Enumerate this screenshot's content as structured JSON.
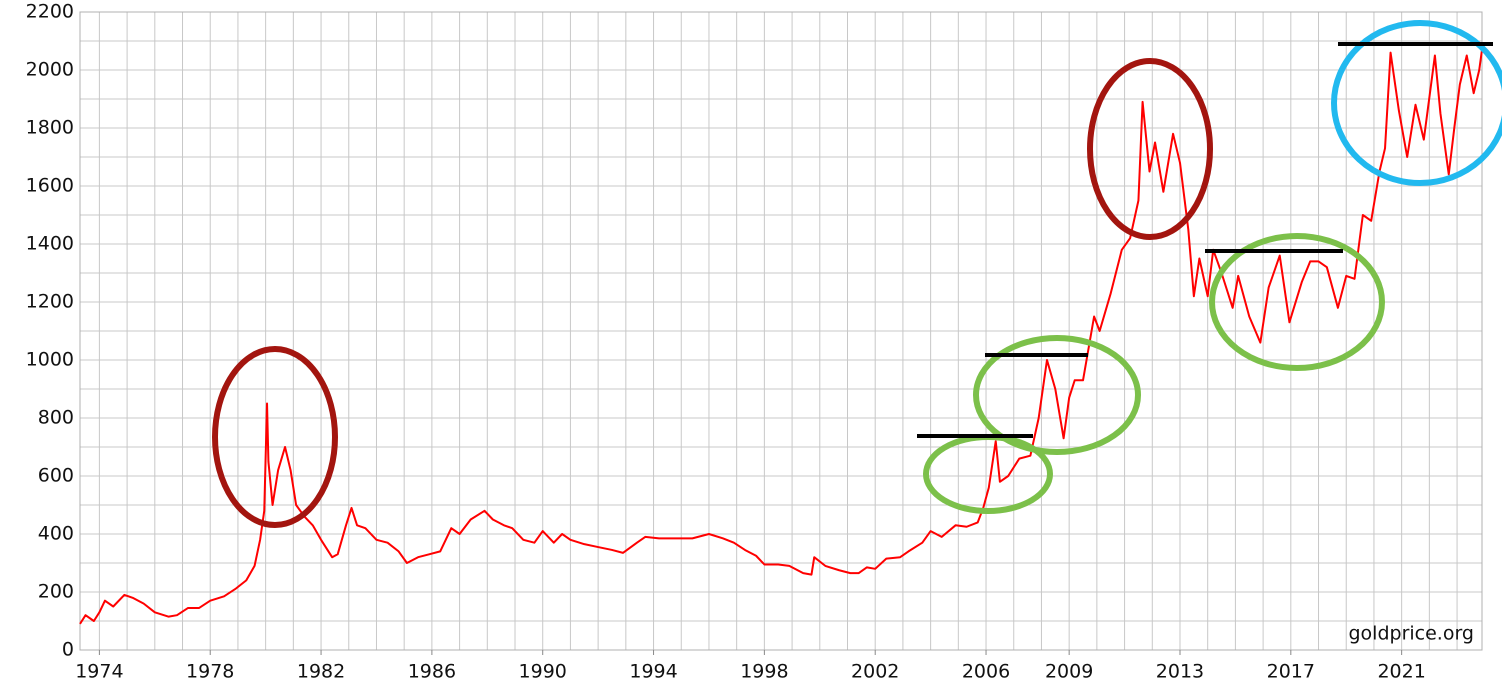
{
  "chart_data": {
    "type": "line",
    "annotation": "goldprice.org",
    "color": "#ff0000",
    "grid": true,
    "xlim": [
      1973.3,
      2023.9
    ],
    "xticks": [
      1974,
      1978,
      1982,
      1986,
      1990,
      1994,
      1998,
      2002,
      2006,
      2009,
      2013,
      2017,
      2021
    ],
    "xminor": [
      1974,
      1975,
      1976,
      1977,
      1978,
      1979,
      1980,
      1981,
      1982,
      1983,
      1984,
      1985,
      1986,
      1987,
      1988,
      1989,
      1990,
      1991,
      1992,
      1993,
      1994,
      1995,
      1996,
      1997,
      1998,
      1999,
      2000,
      2001,
      2002,
      2003,
      2004,
      2005,
      2006,
      2007,
      2008,
      2009,
      2010,
      2011,
      2012,
      2013,
      2014,
      2015,
      2016,
      2017,
      2018,
      2019,
      2020,
      2021,
      2022,
      2023
    ],
    "ylim": [
      0,
      2200
    ],
    "yticks": [
      0,
      200,
      400,
      600,
      800,
      1000,
      1200,
      1400,
      1600,
      1800,
      2000,
      2200
    ],
    "yminor": [
      100,
      300,
      500,
      700,
      900,
      1100,
      1300,
      1500,
      1700,
      1900,
      2100
    ],
    "x": [
      1973.3,
      1973.5,
      1973.8,
      1974.0,
      1974.2,
      1974.5,
      1974.9,
      1975.2,
      1975.6,
      1976.0,
      1976.5,
      1976.8,
      1977.2,
      1977.6,
      1978.0,
      1978.5,
      1978.9,
      1979.3,
      1979.6,
      1979.8,
      1979.95,
      1980.05,
      1980.1,
      1980.25,
      1980.45,
      1980.7,
      1980.9,
      1981.1,
      1981.4,
      1981.7,
      1982.0,
      1982.4,
      1982.6,
      1982.9,
      1983.1,
      1983.3,
      1983.6,
      1984.0,
      1984.4,
      1984.8,
      1985.1,
      1985.5,
      1985.9,
      1986.3,
      1986.7,
      1987.0,
      1987.4,
      1987.9,
      1988.2,
      1988.6,
      1988.9,
      1989.3,
      1989.7,
      1990.0,
      1990.4,
      1990.7,
      1991.0,
      1991.5,
      1992.0,
      1992.5,
      1992.9,
      1993.4,
      1993.7,
      1994.2,
      1994.8,
      1995.4,
      1996.0,
      1996.5,
      1996.9,
      1997.3,
      1997.7,
      1998.0,
      1998.5,
      1998.9,
      1999.4,
      1999.7,
      1999.8,
      2000.2,
      2000.7,
      2001.1,
      2001.4,
      2001.7,
      2002.0,
      2002.4,
      2002.9,
      2003.2,
      2003.7,
      2004.0,
      2004.4,
      2004.9,
      2005.3,
      2005.7,
      2005.9,
      2006.1,
      2006.35,
      2006.5,
      2006.8,
      2007.2,
      2007.6,
      2007.9,
      2008.2,
      2008.5,
      2008.8,
      2009.0,
      2009.2,
      2009.5,
      2009.9,
      2010.1,
      2010.5,
      2010.9,
      2011.2,
      2011.5,
      2011.65,
      2011.9,
      2012.1,
      2012.4,
      2012.75,
      2013.0,
      2013.3,
      2013.5,
      2013.7,
      2014.0,
      2014.2,
      2014.5,
      2014.9,
      2015.1,
      2015.5,
      2015.9,
      2016.2,
      2016.6,
      2016.95,
      2017.4,
      2017.7,
      2018.0,
      2018.3,
      2018.7,
      2019.0,
      2019.3,
      2019.6,
      2019.9,
      2020.2,
      2020.4,
      2020.6,
      2020.9,
      2021.2,
      2021.5,
      2021.8,
      2022.2,
      2022.4,
      2022.7,
      2022.9,
      2023.1,
      2023.35,
      2023.6,
      2023.8,
      2023.9
    ],
    "values": [
      90,
      120,
      100,
      130,
      170,
      150,
      190,
      180,
      160,
      130,
      115,
      120,
      145,
      145,
      170,
      185,
      210,
      240,
      290,
      380,
      480,
      850,
      650,
      500,
      620,
      700,
      620,
      500,
      460,
      430,
      380,
      320,
      330,
      430,
      490,
      430,
      420,
      380,
      370,
      340,
      300,
      320,
      330,
      340,
      420,
      400,
      450,
      480,
      450,
      430,
      420,
      380,
      370,
      410,
      370,
      400,
      380,
      365,
      355,
      345,
      335,
      370,
      390,
      385,
      385,
      385,
      400,
      385,
      370,
      345,
      325,
      295,
      295,
      290,
      265,
      260,
      320,
      290,
      275,
      265,
      265,
      285,
      280,
      315,
      320,
      340,
      370,
      410,
      390,
      430,
      425,
      440,
      490,
      560,
      720,
      580,
      600,
      660,
      670,
      800,
      1000,
      900,
      730,
      870,
      930,
      930,
      1150,
      1100,
      1230,
      1380,
      1420,
      1550,
      1890,
      1650,
      1750,
      1580,
      1780,
      1680,
      1450,
      1220,
      1350,
      1220,
      1380,
      1300,
      1180,
      1290,
      1150,
      1060,
      1250,
      1360,
      1130,
      1270,
      1340,
      1340,
      1320,
      1180,
      1290,
      1280,
      1500,
      1480,
      1650,
      1730,
      2060,
      1860,
      1700,
      1880,
      1760,
      2050,
      1850,
      1640,
      1800,
      1950,
      2050,
      1920,
      2000,
      2070
    ]
  }
}
